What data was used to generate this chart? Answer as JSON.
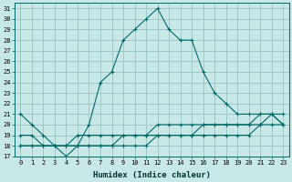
{
  "xlabel": "Humidex (Indice chaleur)",
  "background_color": "#c8e8e8",
  "grid_color": "#a0c8c8",
  "line_color": "#006868",
  "xlim": [
    -0.5,
    23.5
  ],
  "ylim": [
    17,
    31.5
  ],
  "yticks": [
    17,
    18,
    19,
    20,
    21,
    22,
    23,
    24,
    25,
    26,
    27,
    28,
    29,
    30,
    31
  ],
  "xticks": [
    0,
    1,
    2,
    3,
    4,
    5,
    6,
    7,
    8,
    9,
    10,
    11,
    12,
    13,
    14,
    15,
    16,
    17,
    18,
    19,
    20,
    21,
    22,
    23
  ],
  "hours": [
    0,
    1,
    2,
    3,
    4,
    5,
    6,
    7,
    8,
    9,
    10,
    11,
    12,
    13,
    14,
    15,
    16,
    17,
    18,
    19,
    20,
    21,
    22,
    23
  ],
  "line_main": [
    21,
    20,
    19,
    18,
    17,
    18,
    20,
    24,
    25,
    28,
    29,
    30,
    31,
    29,
    28,
    28,
    25,
    23,
    22,
    21,
    21,
    21,
    21,
    20
  ],
  "line_flat1": [
    19,
    19,
    18,
    18,
    18,
    19,
    19,
    19,
    19,
    19,
    19,
    19,
    20,
    20,
    20,
    20,
    20,
    20,
    20,
    20,
    20,
    21,
    21,
    21
  ],
  "line_flat2": [
    18,
    18,
    18,
    18,
    18,
    18,
    18,
    18,
    18,
    19,
    19,
    19,
    19,
    19,
    19,
    19,
    20,
    20,
    20,
    20,
    20,
    20,
    21,
    20
  ],
  "line_flat3": [
    18,
    18,
    18,
    18,
    18,
    18,
    18,
    18,
    18,
    18,
    18,
    18,
    19,
    19,
    19,
    19,
    19,
    19,
    19,
    19,
    19,
    20,
    20,
    20
  ]
}
